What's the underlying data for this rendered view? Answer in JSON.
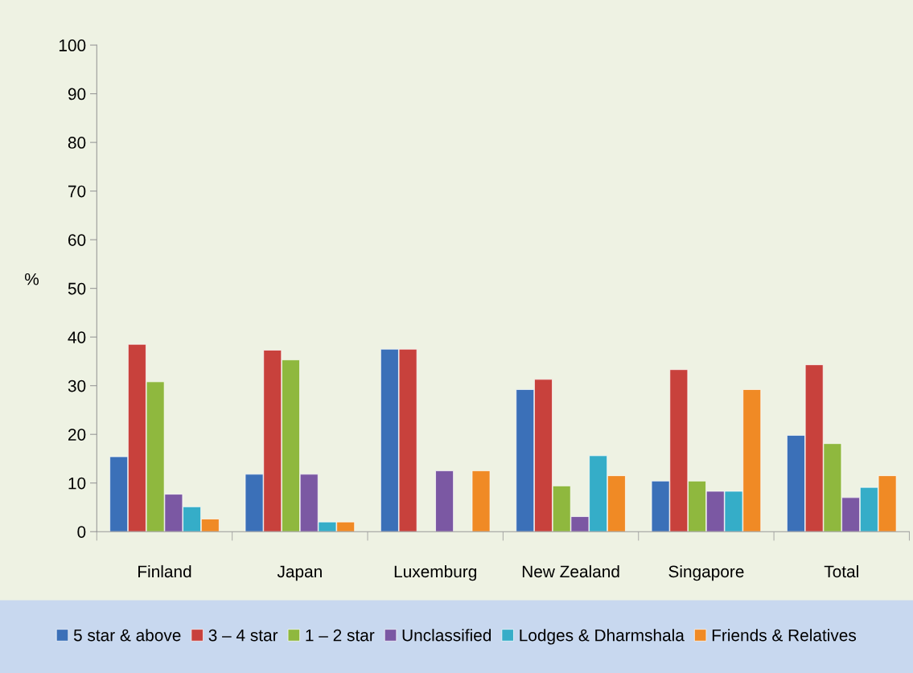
{
  "chart_data": {
    "type": "bar",
    "ylabel": "%",
    "categories": [
      "Finland",
      "Japan",
      "Luxemburg",
      "New Zealand",
      "Singapore",
      "Total"
    ],
    "series": [
      {
        "name": "5 star & above",
        "color": "#3b70b8",
        "values": [
          15.4,
          11.8,
          37.5,
          29.2,
          10.4,
          19.8
        ]
      },
      {
        "name": "3 – 4 star",
        "color": "#c8413c",
        "values": [
          38.5,
          37.3,
          37.5,
          31.3,
          33.3,
          34.3
        ]
      },
      {
        "name": "1 – 2 star",
        "color": "#8fb83e",
        "values": [
          30.8,
          35.3,
          null,
          9.4,
          10.4,
          18.1
        ]
      },
      {
        "name": "Unclassified",
        "color": "#7b58a3",
        "values": [
          7.7,
          11.8,
          12.5,
          3.1,
          8.3,
          7.0
        ]
      },
      {
        "name": "Lodges & Dharmshala",
        "color": "#35adc8",
        "values": [
          5.1,
          2.0,
          null,
          15.6,
          8.3,
          9.1
        ]
      },
      {
        "name": "Friends & Relatives",
        "color": "#f08a25",
        "values": [
          2.6,
          2.0,
          12.5,
          11.5,
          29.2,
          11.5
        ]
      }
    ],
    "ylim": [
      0,
      100
    ],
    "yticks": [
      0,
      10,
      20,
      30,
      40,
      50,
      60,
      70,
      80,
      90,
      100
    ],
    "grid": false,
    "legend": "bottom"
  }
}
